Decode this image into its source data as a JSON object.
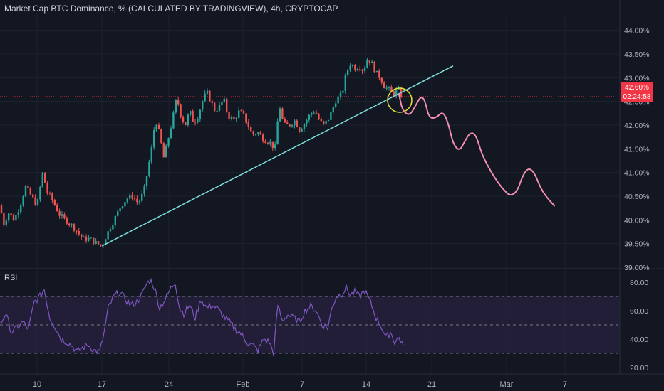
{
  "header": {
    "title": "Market Cap BTC Dominance, % (CALCULATED BY TRADINGVIEW), 4h, CRYPTOCAP"
  },
  "colors": {
    "background": "#131722",
    "up_candle": "#26a69a",
    "down_candle": "#ef5350",
    "trendline": "#7fe3e0",
    "projection": "#f48fb1",
    "circle": "#e6e63a",
    "rsi_line": "#7e57c2",
    "rsi_band": "#2a2240",
    "price_tag": "#f23645",
    "axis_text": "#b2b5be"
  },
  "price_label": {
    "value": "42.60%",
    "countdown": "02:24:58"
  },
  "rsi": {
    "label": "RSI",
    "upper": 70,
    "mid": 50,
    "lower": 30
  },
  "chart_data": {
    "type": "candlestick",
    "y_unit": "%",
    "ylim": [
      39.0,
      44.25
    ],
    "y_ticks": [
      "44.00%",
      "43.50%",
      "43.00%",
      "42.50%",
      "42.00%",
      "41.50%",
      "41.00%",
      "40.50%",
      "40.00%",
      "39.50%",
      "39.00%"
    ],
    "y_tick_values": [
      44.0,
      43.5,
      43.0,
      42.5,
      42.0,
      41.5,
      41.0,
      40.5,
      40.0,
      39.5,
      39.0
    ],
    "x_ticks": [
      "10",
      "17",
      "24",
      "Feb",
      "7",
      "14",
      "21",
      "Mar",
      "7"
    ],
    "price_path": [
      [
        0,
        40.3
      ],
      [
        5,
        39.9
      ],
      [
        12,
        40.15
      ],
      [
        20,
        40.0
      ],
      [
        28,
        40.3
      ],
      [
        36,
        40.7
      ],
      [
        44,
        40.5
      ],
      [
        52,
        40.3
      ],
      [
        60,
        41.0
      ],
      [
        66,
        40.6
      ],
      [
        74,
        40.4
      ],
      [
        84,
        40.1
      ],
      [
        96,
        39.95
      ],
      [
        106,
        39.8
      ],
      [
        116,
        39.6
      ],
      [
        126,
        39.6
      ],
      [
        136,
        39.5
      ],
      [
        143,
        39.45
      ],
      [
        150,
        39.7
      ],
      [
        160,
        40.0
      ],
      [
        170,
        40.3
      ],
      [
        178,
        40.45
      ],
      [
        186,
        40.5
      ],
      [
        194,
        40.35
      ],
      [
        202,
        40.6
      ],
      [
        208,
        41.1
      ],
      [
        214,
        41.6
      ],
      [
        218,
        42.15
      ],
      [
        224,
        41.8
      ],
      [
        230,
        41.3
      ],
      [
        236,
        41.7
      ],
      [
        242,
        42.1
      ],
      [
        248,
        42.6
      ],
      [
        254,
        42.2
      ],
      [
        260,
        42.0
      ],
      [
        266,
        42.3
      ],
      [
        272,
        42.05
      ],
      [
        278,
        42.2
      ],
      [
        284,
        42.5
      ],
      [
        290,
        42.7
      ],
      [
        296,
        42.5
      ],
      [
        302,
        42.3
      ],
      [
        308,
        42.4
      ],
      [
        314,
        42.55
      ],
      [
        320,
        42.2
      ],
      [
        328,
        42.1
      ],
      [
        336,
        42.3
      ],
      [
        342,
        42.2
      ],
      [
        348,
        42.0
      ],
      [
        354,
        41.8
      ],
      [
        362,
        41.85
      ],
      [
        370,
        41.7
      ],
      [
        378,
        41.65
      ],
      [
        386,
        41.5
      ],
      [
        392,
        42.45
      ],
      [
        398,
        42.0
      ],
      [
        406,
        42.0
      ],
      [
        414,
        42.1
      ],
      [
        420,
        41.9
      ],
      [
        428,
        42.05
      ],
      [
        436,
        42.25
      ],
      [
        442,
        42.3
      ],
      [
        448,
        42.1
      ],
      [
        454,
        42.0
      ],
      [
        460,
        42.1
      ],
      [
        466,
        42.3
      ],
      [
        472,
        42.55
      ],
      [
        480,
        42.65
      ],
      [
        486,
        43.1
      ],
      [
        492,
        43.3
      ],
      [
        498,
        43.2
      ],
      [
        504,
        43.25
      ],
      [
        510,
        43.15
      ],
      [
        516,
        43.4
      ],
      [
        522,
        43.3
      ],
      [
        528,
        43.1
      ],
      [
        534,
        43.0
      ],
      [
        540,
        42.8
      ],
      [
        546,
        42.75
      ],
      [
        552,
        42.65
      ],
      [
        558,
        42.75
      ],
      [
        564,
        42.6
      ]
    ],
    "projection_path": [
      [
        560,
        42.65
      ],
      [
        565,
        42.3
      ],
      [
        575,
        42.2
      ],
      [
        583,
        42.4
      ],
      [
        590,
        42.6
      ],
      [
        596,
        42.55
      ],
      [
        602,
        42.15
      ],
      [
        612,
        42.15
      ],
      [
        622,
        42.3
      ],
      [
        630,
        42.0
      ],
      [
        636,
        41.6
      ],
      [
        645,
        41.45
      ],
      [
        652,
        41.65
      ],
      [
        660,
        41.85
      ],
      [
        668,
        41.8
      ],
      [
        676,
        41.4
      ],
      [
        686,
        41.1
      ],
      [
        696,
        40.85
      ],
      [
        706,
        40.65
      ],
      [
        716,
        40.5
      ],
      [
        726,
        40.6
      ],
      [
        734,
        40.95
      ],
      [
        742,
        41.1
      ],
      [
        750,
        41.0
      ],
      [
        758,
        40.7
      ],
      [
        766,
        40.5
      ],
      [
        778,
        40.3
      ]
    ],
    "trendline": [
      [
        143,
        39.45
      ],
      [
        636,
        43.25
      ]
    ],
    "circle_center": [
      561,
      42.525
    ],
    "rsi_y_ticks": [
      "80.00",
      "60.00",
      "40.00",
      "20.00"
    ],
    "rsi_tick_values": [
      80,
      60,
      40,
      20
    ],
    "rsi_ylim": [
      17.5,
      83.5
    ],
    "rsi_values": [
      [
        0,
        50
      ],
      [
        8,
        58
      ],
      [
        16,
        45
      ],
      [
        24,
        48
      ],
      [
        32,
        52
      ],
      [
        40,
        47
      ],
      [
        48,
        66
      ],
      [
        56,
        70
      ],
      [
        62,
        75
      ],
      [
        70,
        55
      ],
      [
        78,
        48
      ],
      [
        86,
        40
      ],
      [
        94,
        38
      ],
      [
        102,
        35
      ],
      [
        108,
        31
      ],
      [
        116,
        34
      ],
      [
        124,
        36
      ],
      [
        132,
        32
      ],
      [
        140,
        31
      ],
      [
        146,
        44
      ],
      [
        152,
        62
      ],
      [
        160,
        70
      ],
      [
        168,
        73
      ],
      [
        176,
        68
      ],
      [
        184,
        64
      ],
      [
        192,
        66
      ],
      [
        200,
        72
      ],
      [
        206,
        79
      ],
      [
        212,
        82
      ],
      [
        218,
        74
      ],
      [
        224,
        62
      ],
      [
        232,
        68
      ],
      [
        240,
        76
      ],
      [
        246,
        80
      ],
      [
        252,
        62
      ],
      [
        258,
        58
      ],
      [
        266,
        64
      ],
      [
        274,
        55
      ],
      [
        282,
        68
      ],
      [
        290,
        62
      ],
      [
        298,
        64
      ],
      [
        306,
        61
      ],
      [
        314,
        56
      ],
      [
        322,
        52
      ],
      [
        330,
        47
      ],
      [
        338,
        44
      ],
      [
        346,
        38
      ],
      [
        354,
        36
      ],
      [
        362,
        32
      ],
      [
        370,
        40
      ],
      [
        378,
        38
      ],
      [
        384,
        30
      ],
      [
        390,
        64
      ],
      [
        396,
        53
      ],
      [
        404,
        57
      ],
      [
        412,
        55
      ],
      [
        420,
        52
      ],
      [
        428,
        60
      ],
      [
        436,
        63
      ],
      [
        444,
        60
      ],
      [
        452,
        50
      ],
      [
        460,
        48
      ],
      [
        466,
        62
      ],
      [
        472,
        70
      ],
      [
        480,
        72
      ],
      [
        486,
        76
      ],
      [
        492,
        71
      ],
      [
        498,
        73
      ],
      [
        504,
        70
      ],
      [
        512,
        74
      ],
      [
        520,
        66
      ],
      [
        528,
        55
      ],
      [
        536,
        48
      ],
      [
        542,
        41
      ],
      [
        548,
        45
      ],
      [
        554,
        38
      ],
      [
        560,
        41
      ],
      [
        566,
        36
      ]
    ]
  }
}
